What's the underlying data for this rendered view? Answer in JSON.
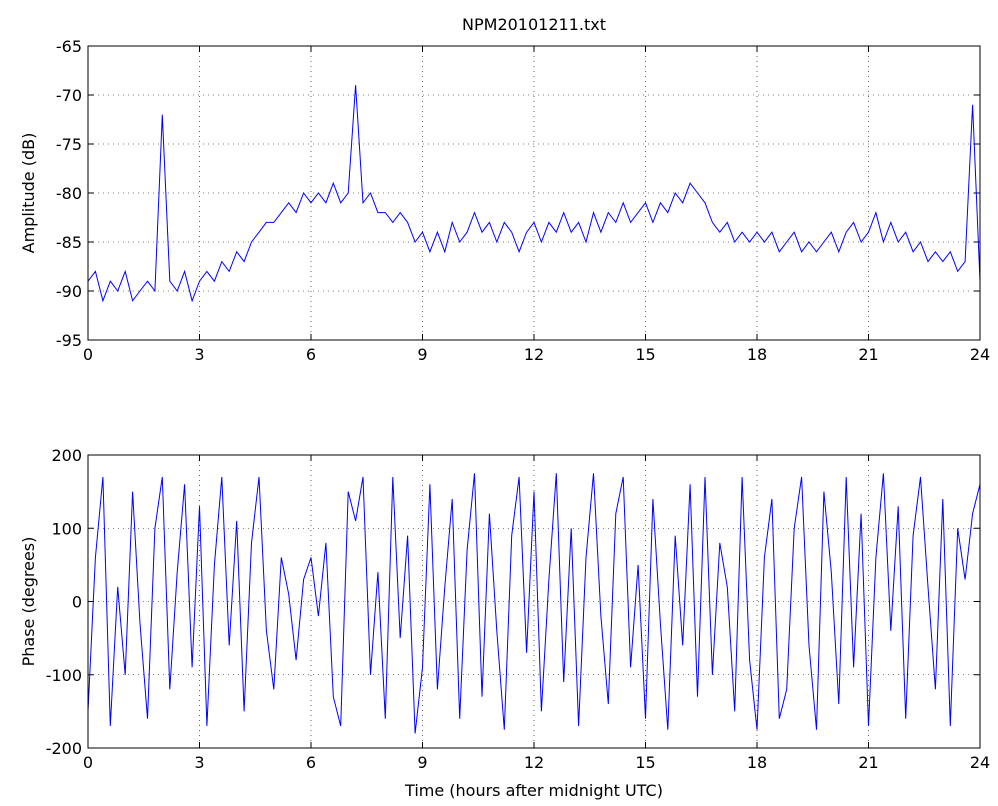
{
  "chart_data": [
    {
      "type": "line",
      "title": "NPM20101211.txt",
      "ylabel": "Amplitude (dB)",
      "x": [
        0,
        0.2,
        0.4,
        0.6,
        0.8,
        1,
        1.2,
        1.4,
        1.6,
        1.8,
        2,
        2.2,
        2.4,
        2.6,
        2.8,
        3,
        3.2,
        3.4,
        3.6,
        3.8,
        4,
        4.2,
        4.4,
        4.6,
        4.8,
        5,
        5.2,
        5.4,
        5.6,
        5.8,
        6,
        6.2,
        6.4,
        6.6,
        6.8,
        7,
        7.2,
        7.4,
        7.6,
        7.8,
        8,
        8.2,
        8.4,
        8.6,
        8.8,
        9,
        9.2,
        9.4,
        9.6,
        9.8,
        10,
        10.2,
        10.4,
        10.6,
        10.8,
        11,
        11.2,
        11.4,
        11.6,
        11.8,
        12,
        12.2,
        12.4,
        12.6,
        12.8,
        13,
        13.2,
        13.4,
        13.6,
        13.8,
        14,
        14.2,
        14.4,
        14.6,
        14.8,
        15,
        15.2,
        15.4,
        15.6,
        15.8,
        16,
        16.2,
        16.4,
        16.6,
        16.8,
        17,
        17.2,
        17.4,
        17.6,
        17.8,
        18,
        18.2,
        18.4,
        18.6,
        18.8,
        19,
        19.2,
        19.4,
        19.6,
        19.8,
        20,
        20.2,
        20.4,
        20.6,
        20.8,
        21,
        21.2,
        21.4,
        21.6,
        21.8,
        22,
        22.2,
        22.4,
        22.6,
        22.8,
        23,
        23.2,
        23.4,
        23.6,
        23.8,
        24
      ],
      "values": [
        -89,
        -88,
        -91,
        -89,
        -90,
        -88,
        -91,
        -90,
        -89,
        -90,
        -72,
        -89,
        -90,
        -88,
        -91,
        -89,
        -88,
        -89,
        -87,
        -88,
        -86,
        -87,
        -85,
        -84,
        -83,
        -83,
        -82,
        -81,
        -82,
        -80,
        -81,
        -80,
        -81,
        -79,
        -81,
        -80,
        -69,
        -81,
        -80,
        -82,
        -82,
        -83,
        -82,
        -83,
        -85,
        -84,
        -86,
        -84,
        -86,
        -83,
        -85,
        -84,
        -82,
        -84,
        -83,
        -85,
        -83,
        -84,
        -86,
        -84,
        -83,
        -85,
        -83,
        -84,
        -82,
        -84,
        -83,
        -85,
        -82,
        -84,
        -82,
        -83,
        -81,
        -83,
        -82,
        -81,
        -83,
        -81,
        -82,
        -80,
        -81,
        -79,
        -80,
        -81,
        -83,
        -84,
        -83,
        -85,
        -84,
        -85,
        -84,
        -85,
        -84,
        -86,
        -85,
        -84,
        -86,
        -85,
        -86,
        -85,
        -84,
        -86,
        -84,
        -83,
        -85,
        -84,
        -82,
        -85,
        -83,
        -85,
        -84,
        -86,
        -85,
        -87,
        -86,
        -87,
        -86,
        -88,
        -87,
        -71,
        -89
      ],
      "color": "#0000ff",
      "xlim": [
        0,
        24
      ],
      "xticks": [
        0,
        3,
        6,
        9,
        12,
        15,
        18,
        21,
        24
      ],
      "ylim": [
        -95,
        -65
      ],
      "yticks": [
        -95,
        -90,
        -85,
        -80,
        -75,
        -70,
        -65
      ],
      "grid": true
    },
    {
      "type": "line",
      "ylabel": "Phase (degrees)",
      "xlabel": "Time (hours after midnight UTC)",
      "x": [
        0,
        0.2,
        0.4,
        0.6,
        0.8,
        1,
        1.2,
        1.4,
        1.6,
        1.8,
        2,
        2.2,
        2.4,
        2.6,
        2.8,
        3,
        3.2,
        3.4,
        3.6,
        3.8,
        4,
        4.2,
        4.4,
        4.6,
        4.8,
        5,
        5.2,
        5.4,
        5.6,
        5.8,
        6,
        6.2,
        6.4,
        6.6,
        6.8,
        7,
        7.2,
        7.4,
        7.6,
        7.8,
        8,
        8.2,
        8.4,
        8.6,
        8.8,
        9,
        9.2,
        9.4,
        9.6,
        9.8,
        10,
        10.2,
        10.4,
        10.6,
        10.8,
        11,
        11.2,
        11.4,
        11.6,
        11.8,
        12,
        12.2,
        12.4,
        12.6,
        12.8,
        13,
        13.2,
        13.4,
        13.6,
        13.8,
        14,
        14.2,
        14.4,
        14.6,
        14.8,
        15,
        15.2,
        15.4,
        15.6,
        15.8,
        16,
        16.2,
        16.4,
        16.6,
        16.8,
        17,
        17.2,
        17.4,
        17.6,
        17.8,
        18,
        18.2,
        18.4,
        18.6,
        18.8,
        19,
        19.2,
        19.4,
        19.6,
        19.8,
        20,
        20.2,
        20.4,
        20.6,
        20.8,
        21,
        21.2,
        21.4,
        21.6,
        21.8,
        22,
        22.2,
        22.4,
        22.6,
        22.8,
        23,
        23.2,
        23.4,
        23.6,
        23.8,
        24
      ],
      "values": [
        -150,
        60,
        170,
        -170,
        20,
        -100,
        150,
        -30,
        -160,
        100,
        170,
        -120,
        40,
        160,
        -90,
        130,
        -170,
        50,
        170,
        -60,
        110,
        -150,
        80,
        170,
        -40,
        -120,
        60,
        10,
        -80,
        30,
        60,
        -20,
        80,
        -130,
        -170,
        150,
        110,
        170,
        -100,
        40,
        -160,
        170,
        -50,
        90,
        -180,
        -90,
        160,
        -120,
        20,
        140,
        -160,
        70,
        175,
        -130,
        120,
        -40,
        -175,
        90,
        170,
        -70,
        150,
        -150,
        30,
        175,
        -110,
        100,
        -170,
        60,
        175,
        -20,
        -140,
        120,
        170,
        -90,
        50,
        -160,
        140,
        -30,
        -175,
        90,
        -60,
        160,
        -130,
        170,
        -100,
        80,
        20,
        -150,
        170,
        -80,
        -175,
        60,
        140,
        -160,
        -120,
        100,
        170,
        -60,
        -175,
        150,
        40,
        -140,
        170,
        -90,
        120,
        -170,
        60,
        175,
        -40,
        130,
        -160,
        90,
        170,
        20,
        -120,
        140,
        -170,
        100,
        30,
        120,
        160
      ],
      "color": "#0000ff",
      "xlim": [
        0,
        24
      ],
      "xticks": [
        0,
        3,
        6,
        9,
        12,
        15,
        18,
        21,
        24
      ],
      "ylim": [
        -200,
        200
      ],
      "yticks": [
        -200,
        -100,
        0,
        100,
        200
      ],
      "grid": true
    }
  ]
}
